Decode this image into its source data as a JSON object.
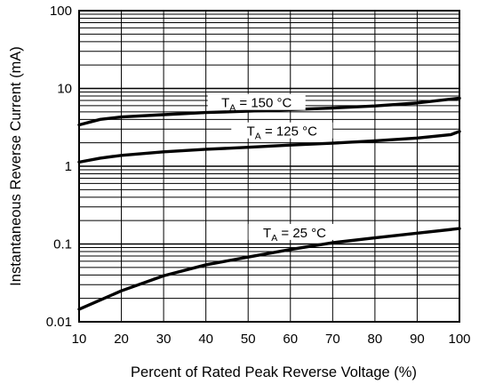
{
  "chart_data": {
    "type": "line",
    "xlabel": "Percent of Rated Peak Reverse Voltage (%)",
    "ylabel": "Instantaneous Reverse Current (mA)",
    "x_scale": "linear",
    "y_scale": "log",
    "xlim": [
      10,
      100
    ],
    "ylim": [
      0.01,
      100
    ],
    "grid": true,
    "x_ticks": [
      10,
      20,
      30,
      40,
      50,
      60,
      70,
      80,
      90,
      100
    ],
    "x_tick_labels": [
      "10",
      "20",
      "30",
      "40",
      "50",
      "60",
      "70",
      "80",
      "90",
      "100"
    ],
    "y_ticks": [
      0.01,
      0.1,
      1,
      10,
      100
    ],
    "y_tick_labels": [
      "0.01",
      "0.1",
      "1",
      "10",
      "100"
    ],
    "series": [
      {
        "label_main": "T",
        "label_sub": "A",
        "label_rest": " = 150 °C",
        "x": [
          10,
          15,
          20,
          30,
          40,
          50,
          60,
          70,
          80,
          90,
          100
        ],
        "y": [
          3.4,
          4.0,
          4.3,
          4.6,
          4.9,
          5.1,
          5.35,
          5.6,
          5.95,
          6.5,
          7.5
        ]
      },
      {
        "label_main": "T",
        "label_sub": "A",
        "label_rest": " = 125 °C",
        "x": [
          10,
          15,
          20,
          30,
          40,
          50,
          60,
          70,
          80,
          90,
          98,
          100
        ],
        "y": [
          1.13,
          1.27,
          1.38,
          1.53,
          1.65,
          1.75,
          1.87,
          1.98,
          2.12,
          2.3,
          2.55,
          2.8
        ]
      },
      {
        "label_main": "T",
        "label_sub": "A",
        "label_rest": " = 25 °C",
        "x": [
          10,
          15,
          20,
          30,
          40,
          50,
          60,
          70,
          80,
          90,
          100
        ],
        "y": [
          0.0145,
          0.019,
          0.025,
          0.039,
          0.054,
          0.068,
          0.085,
          0.104,
          0.12,
          0.138,
          0.158
        ]
      }
    ]
  }
}
